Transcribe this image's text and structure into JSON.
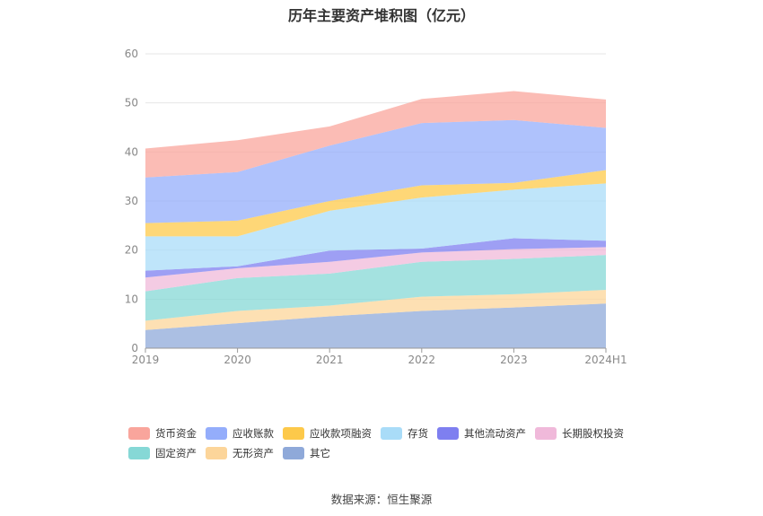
{
  "chart_data": {
    "type": "area",
    "stacked": true,
    "title": "历年主要资产堆积图（亿元）",
    "categories": [
      "2019",
      "2020",
      "2021",
      "2022",
      "2023",
      "2024H1"
    ],
    "ylim": [
      0,
      60
    ],
    "yticks": [
      0,
      10,
      20,
      30,
      40,
      50,
      60
    ],
    "grid": true,
    "legend_position": "bottom",
    "series": [
      {
        "name": "其它",
        "color": "#8fa9d9",
        "values": [
          3.7,
          5.1,
          6.5,
          7.6,
          8.3,
          9.1
        ]
      },
      {
        "name": "无形资产",
        "color": "#fcd59a",
        "values": [
          1.9,
          2.5,
          2.2,
          2.9,
          2.7,
          2.8
        ]
      },
      {
        "name": "固定资产",
        "color": "#86d8d6",
        "values": [
          6.0,
          6.7,
          6.5,
          7.1,
          7.2,
          7.1
        ]
      },
      {
        "name": "长期股权投资",
        "color": "#f0b9da",
        "values": [
          2.8,
          2.0,
          2.4,
          1.9,
          2.0,
          1.6
        ]
      },
      {
        "name": "其他流动资产",
        "color": "#7e7ff0",
        "values": [
          1.4,
          0.4,
          2.3,
          0.8,
          2.2,
          1.3
        ]
      },
      {
        "name": "存货",
        "color": "#a9dcf8",
        "values": [
          7.0,
          6.1,
          8.1,
          10.4,
          9.9,
          11.7
        ]
      },
      {
        "name": "应收款项融资",
        "color": "#fdc94a",
        "values": [
          2.7,
          3.2,
          2.0,
          2.5,
          1.4,
          2.7
        ]
      },
      {
        "name": "应收账款",
        "color": "#94adfb",
        "values": [
          9.3,
          9.9,
          11.3,
          12.7,
          12.8,
          8.6
        ]
      },
      {
        "name": "货币资金",
        "color": "#f9a59c",
        "values": [
          5.9,
          6.5,
          3.9,
          4.9,
          5.9,
          5.8
        ]
      }
    ],
    "legend_order": [
      "货币资金",
      "应收账款",
      "应收款项融资",
      "存货",
      "其他流动资产",
      "长期股权投资",
      "固定资产",
      "无形资产",
      "其它"
    ]
  },
  "source_label": "数据来源：恒生聚源"
}
